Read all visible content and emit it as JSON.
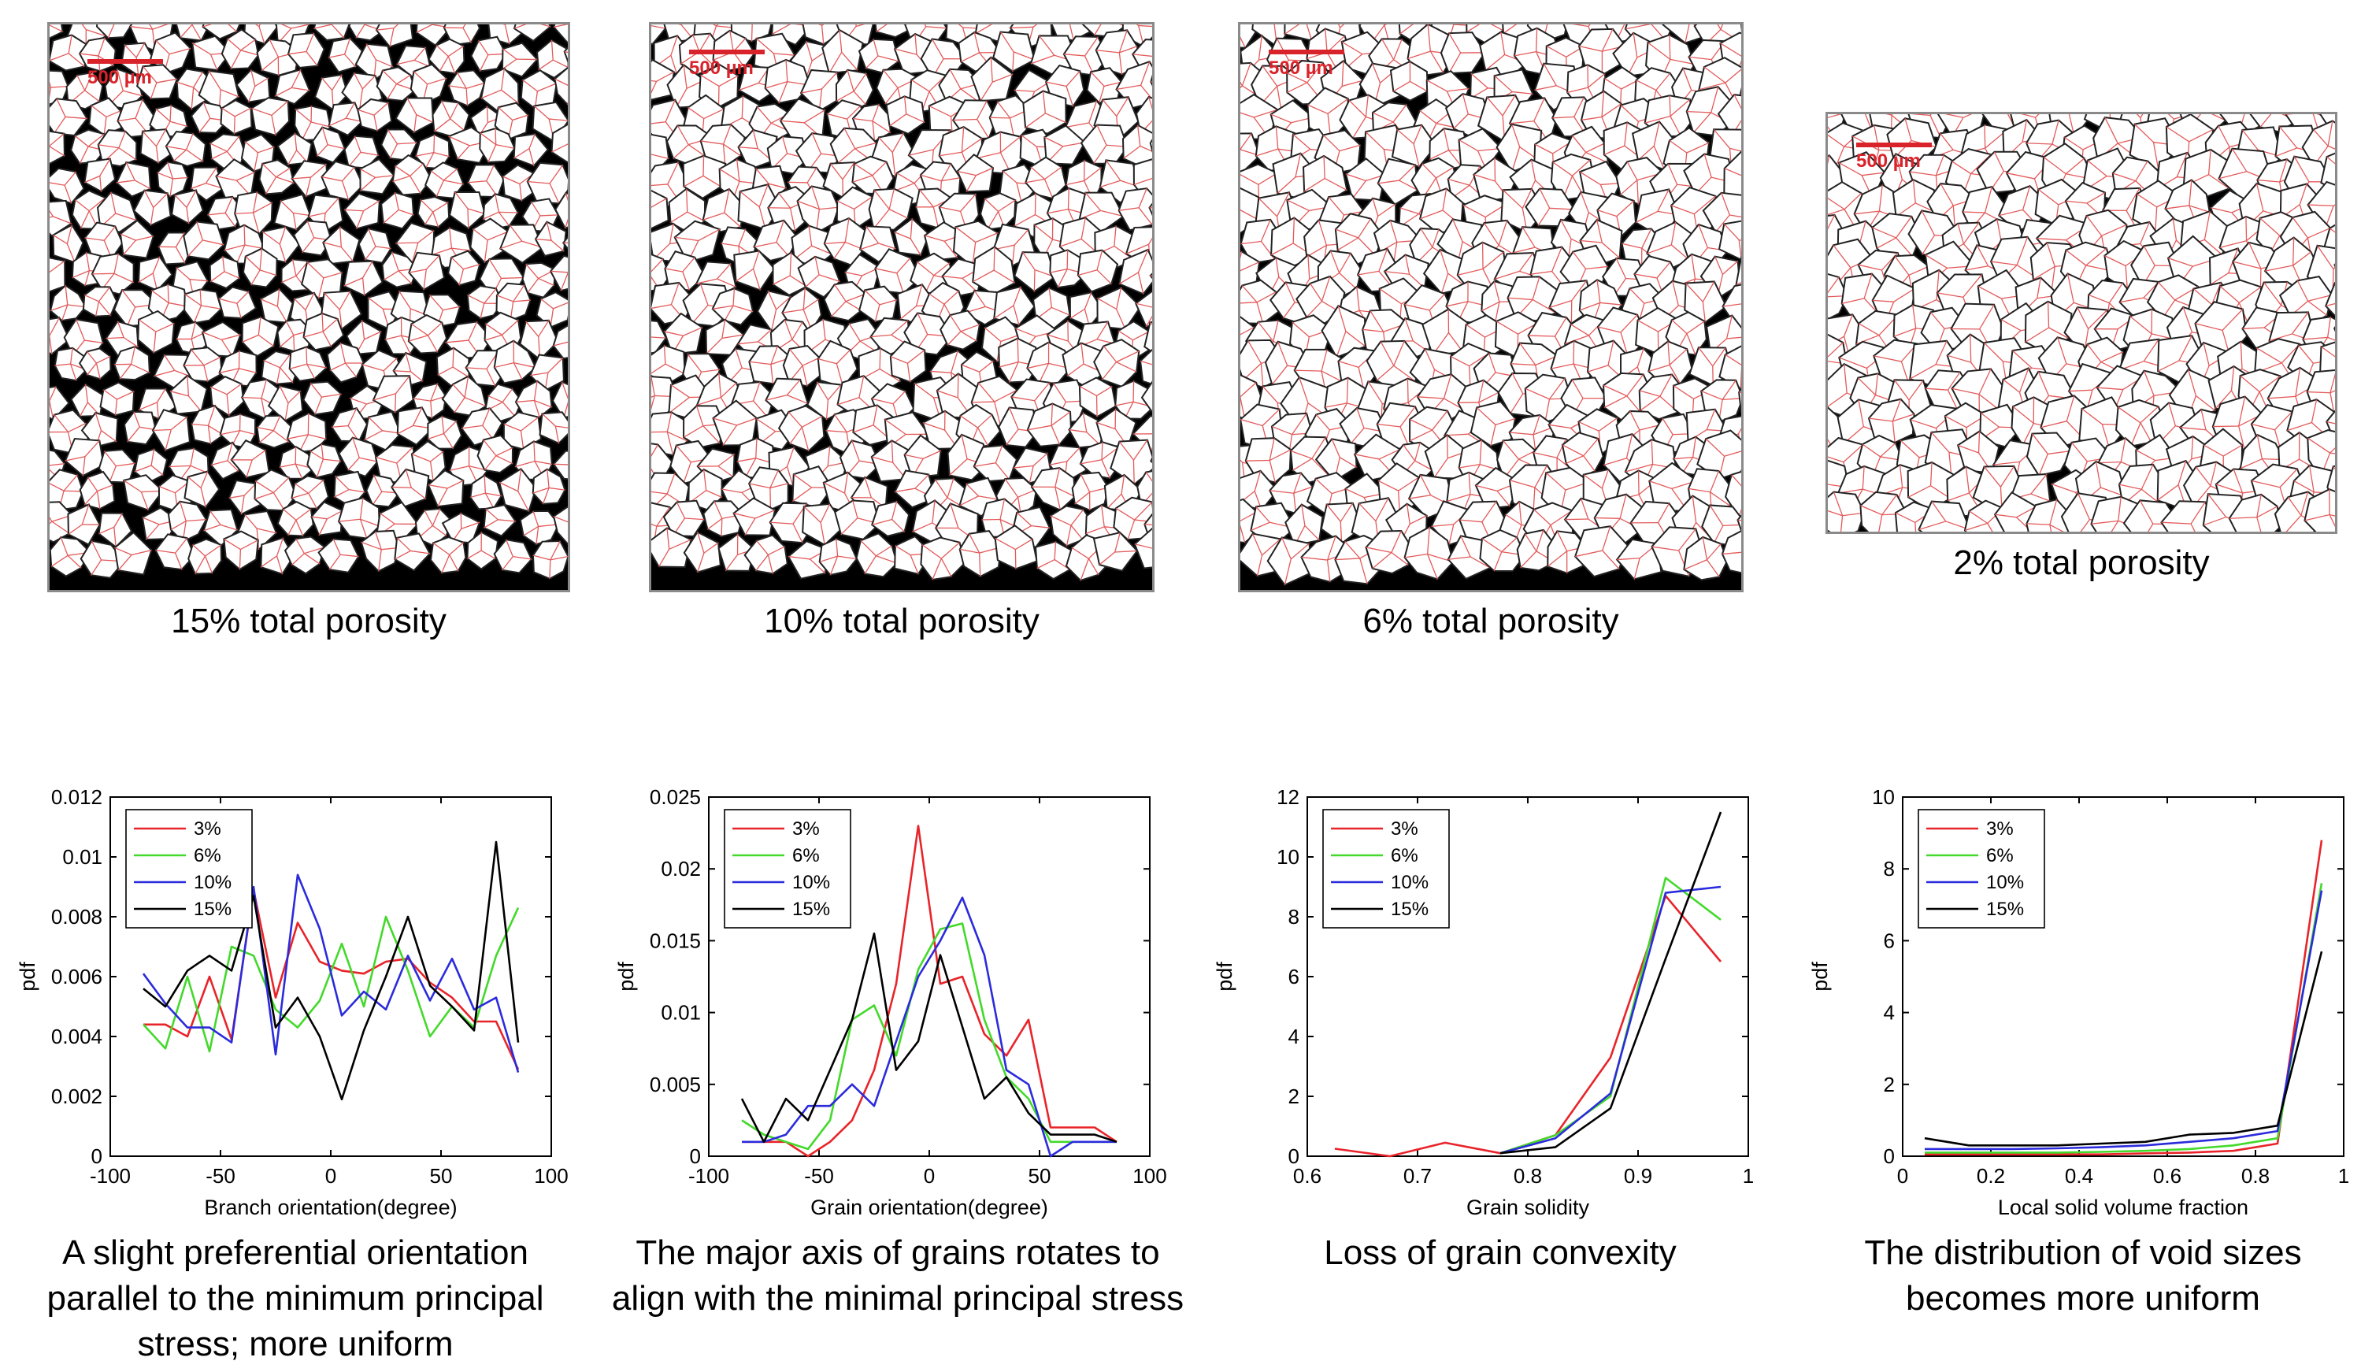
{
  "micrographs": [
    {
      "caption": "15% total porosity",
      "scale_label": "500 µm",
      "porosity": 0.15
    },
    {
      "caption": "10% total porosity",
      "scale_label": "500 µm",
      "porosity": 0.1
    },
    {
      "caption": "6% total porosity",
      "scale_label": "500 µm",
      "porosity": 0.06
    },
    {
      "caption": "2% total porosity",
      "scale_label": "500 µm",
      "porosity": 0.02
    }
  ],
  "colors": {
    "s3": "#e8242a",
    "s6": "#43d92b",
    "s10": "#2b2bdc",
    "s15": "#000000",
    "grain_edge": "#e35a5a",
    "scale": "#d9232a"
  },
  "chart_data": [
    {
      "type": "line",
      "caption": "A slight preferential orientation parallel to the minimum principal stress; more uniform",
      "xlabel": "Branch orientation(degree)",
      "ylabel": "pdf",
      "xlim": [
        -100,
        100
      ],
      "ylim": [
        0,
        0.012
      ],
      "xticks": [
        -100,
        -50,
        0,
        50,
        100
      ],
      "yticks": [
        0,
        0.002,
        0.004,
        0.006,
        0.008,
        0.01,
        0.012
      ],
      "ytick_labels": [
        "0",
        "0.002",
        "0.004",
        "0.006",
        "0.008",
        "0.01",
        "0.012"
      ],
      "legend": "top-left",
      "x": [
        -85,
        -75,
        -65,
        -55,
        -45,
        -35,
        -25,
        -15,
        -5,
        5,
        15,
        25,
        35,
        45,
        55,
        65,
        75,
        85
      ],
      "series": [
        {
          "name": "3%",
          "color": "#e8242a",
          "values": [
            0.0044,
            0.0044,
            0.004,
            0.006,
            0.0039,
            0.0089,
            0.0053,
            0.0078,
            0.0065,
            0.0062,
            0.0061,
            0.0065,
            0.0066,
            0.0058,
            0.0053,
            0.0045,
            0.0045,
            0.0029
          ]
        },
        {
          "name": "6%",
          "color": "#43d92b",
          "values": [
            0.0044,
            0.0036,
            0.006,
            0.0035,
            0.007,
            0.0067,
            0.0049,
            0.0043,
            0.0052,
            0.0071,
            0.005,
            0.008,
            0.0062,
            0.004,
            0.005,
            0.0043,
            0.0067,
            0.0083
          ]
        },
        {
          "name": "10%",
          "color": "#2b2bdc",
          "values": [
            0.0061,
            0.0051,
            0.0043,
            0.0043,
            0.0038,
            0.009,
            0.0034,
            0.0094,
            0.0076,
            0.0047,
            0.0055,
            0.0049,
            0.0067,
            0.0052,
            0.0066,
            0.0049,
            0.0053,
            0.0028
          ]
        },
        {
          "name": "15%",
          "color": "#000000",
          "values": [
            0.0056,
            0.005,
            0.0062,
            0.0067,
            0.0062,
            0.0087,
            0.0043,
            0.0053,
            0.004,
            0.0019,
            0.0042,
            0.006,
            0.008,
            0.0057,
            0.005,
            0.0042,
            0.0105,
            0.0038
          ]
        }
      ]
    },
    {
      "type": "line",
      "caption": "The major axis of grains rotates to align with the minimal principal stress",
      "xlabel": "Grain orientation(degree)",
      "ylabel": "pdf",
      "xlim": [
        -100,
        100
      ],
      "ylim": [
        0,
        0.025
      ],
      "xticks": [
        -100,
        -50,
        0,
        50,
        100
      ],
      "yticks": [
        0,
        0.005,
        0.01,
        0.015,
        0.02,
        0.025
      ],
      "ytick_labels": [
        "0",
        "0.005",
        "0.01",
        "0.015",
        "0.02",
        "0.025"
      ],
      "legend": "top-left",
      "x": [
        -85,
        -75,
        -65,
        -55,
        -45,
        -35,
        -25,
        -15,
        -5,
        5,
        15,
        25,
        35,
        45,
        55,
        65,
        75,
        85
      ],
      "series": [
        {
          "name": "3%",
          "color": "#e8242a",
          "values": [
            0.001,
            0.001,
            0.001,
            0.0,
            0.001,
            0.0025,
            0.006,
            0.012,
            0.023,
            0.012,
            0.0125,
            0.0085,
            0.007,
            0.0095,
            0.002,
            0.002,
            0.002,
            0.001
          ]
        },
        {
          "name": "6%",
          "color": "#43d92b",
          "values": [
            0.0025,
            0.0015,
            0.001,
            0.0005,
            0.0025,
            0.0095,
            0.0105,
            0.007,
            0.013,
            0.0158,
            0.0162,
            0.0095,
            0.0055,
            0.004,
            0.001,
            0.001,
            0.001,
            0.001
          ]
        },
        {
          "name": "10%",
          "color": "#2b2bdc",
          "values": [
            0.001,
            0.001,
            0.0015,
            0.0035,
            0.0035,
            0.005,
            0.0035,
            0.008,
            0.0125,
            0.015,
            0.018,
            0.014,
            0.006,
            0.005,
            0.0,
            0.001,
            0.001,
            0.001
          ]
        },
        {
          "name": "15%",
          "color": "#000000",
          "values": [
            0.004,
            0.001,
            0.004,
            0.0025,
            0.006,
            0.0095,
            0.0155,
            0.006,
            0.008,
            0.014,
            0.009,
            0.004,
            0.0055,
            0.003,
            0.0015,
            0.0015,
            0.0015,
            0.001
          ]
        }
      ]
    },
    {
      "type": "line",
      "caption": "Loss of grain convexity",
      "xlabel": "Grain solidity",
      "ylabel": "pdf",
      "xlim": [
        0.6,
        1.0
      ],
      "ylim": [
        0,
        12
      ],
      "xticks": [
        0.6,
        0.7,
        0.8,
        0.9,
        1
      ],
      "xtick_labels": [
        "0.6",
        "0.7",
        "0.8",
        "0.9",
        "1"
      ],
      "yticks": [
        0,
        2,
        4,
        6,
        8,
        10,
        12
      ],
      "ytick_labels": [
        "0",
        "2",
        "4",
        "6",
        "8",
        "10",
        "12"
      ],
      "legend": "top-left",
      "x": [
        0.625,
        0.675,
        0.725,
        0.775,
        0.825,
        0.875,
        0.925,
        0.975
      ],
      "series": [
        {
          "name": "3%",
          "color": "#e8242a",
          "values": [
            0.25,
            0.0,
            0.45,
            0.1,
            0.7,
            3.3,
            8.7,
            6.5
          ]
        },
        {
          "name": "6%",
          "color": "#43d92b",
          "values": [
            null,
            null,
            null,
            0.1,
            0.7,
            2.0,
            9.3,
            7.9
          ]
        },
        {
          "name": "10%",
          "color": "#2b2bdc",
          "values": [
            null,
            null,
            null,
            0.1,
            0.6,
            2.1,
            8.8,
            9.0
          ]
        },
        {
          "name": "15%",
          "color": "#000000",
          "values": [
            null,
            null,
            null,
            0.1,
            0.3,
            1.6,
            6.6,
            11.5
          ]
        }
      ]
    },
    {
      "type": "line",
      "caption": "The distribution of void sizes becomes more uniform",
      "xlabel": "Local solid volume fraction",
      "ylabel": "pdf",
      "xlim": [
        0,
        1
      ],
      "ylim": [
        0,
        10
      ],
      "xticks": [
        0,
        0.2,
        0.4,
        0.6,
        0.8,
        1
      ],
      "xtick_labels": [
        "0",
        "0.2",
        "0.4",
        "0.6",
        "0.8",
        "1"
      ],
      "yticks": [
        0,
        2,
        4,
        6,
        8,
        10
      ],
      "ytick_labels": [
        "0",
        "2",
        "4",
        "6",
        "8",
        "10"
      ],
      "legend": "top-left",
      "x": [
        0.05,
        0.15,
        0.25,
        0.35,
        0.45,
        0.55,
        0.65,
        0.75,
        0.85,
        0.95
      ],
      "series": [
        {
          "name": "3%",
          "color": "#e8242a",
          "values": [
            0.05,
            0.05,
            0.05,
            0.05,
            0.05,
            0.08,
            0.1,
            0.15,
            0.35,
            8.8
          ]
        },
        {
          "name": "6%",
          "color": "#43d92b",
          "values": [
            0.1,
            0.1,
            0.1,
            0.1,
            0.12,
            0.15,
            0.2,
            0.3,
            0.5,
            7.6
          ]
        },
        {
          "name": "10%",
          "color": "#2b2bdc",
          "values": [
            0.2,
            0.2,
            0.2,
            0.22,
            0.25,
            0.3,
            0.4,
            0.5,
            0.7,
            7.4
          ]
        },
        {
          "name": "15%",
          "color": "#000000",
          "values": [
            0.5,
            0.3,
            0.3,
            0.3,
            0.35,
            0.4,
            0.6,
            0.65,
            0.85,
            5.7
          ]
        }
      ]
    }
  ]
}
